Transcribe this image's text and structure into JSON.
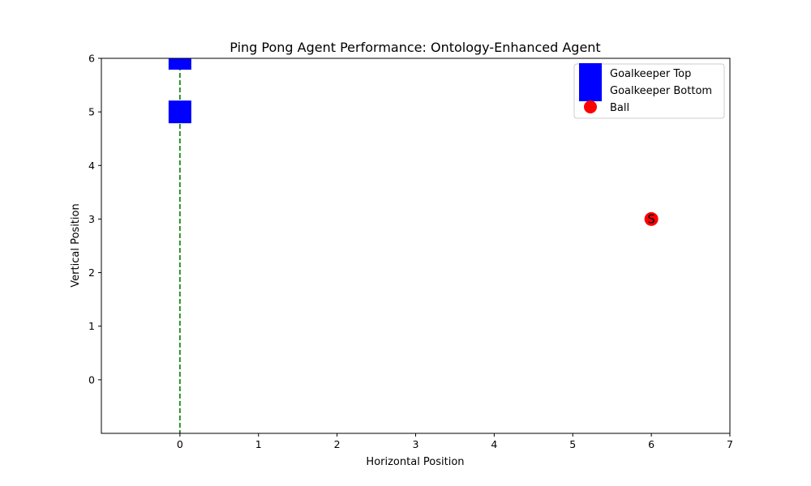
{
  "chart_data": {
    "type": "scatter",
    "title": "Ping Pong Agent Performance: Ontology-Enhanced Agent",
    "xlabel": "Horizontal Position",
    "ylabel": "Vertical Position",
    "xlim": [
      -1,
      7
    ],
    "ylim": [
      -1,
      6
    ],
    "xticks": [
      "0",
      "1",
      "2",
      "3",
      "4",
      "5",
      "6",
      "7"
    ],
    "yticks": [
      "0",
      "1",
      "2",
      "3",
      "4",
      "5",
      "6"
    ],
    "grid": false,
    "legend_position": "top-right",
    "goal_line": {
      "x": 0,
      "style": "dashed",
      "color": "#008000"
    },
    "series": [
      {
        "name": "Goalkeeper Top",
        "marker": "square",
        "color": "#0000ff",
        "points": [
          {
            "x": 0,
            "y": 6
          }
        ]
      },
      {
        "name": "Goalkeeper Bottom",
        "marker": "square",
        "color": "#0000ff",
        "points": [
          {
            "x": 0,
            "y": 5
          }
        ]
      },
      {
        "name": "Ball",
        "marker": "circle",
        "color": "#ff0000",
        "points": [
          {
            "x": 6,
            "y": 3
          }
        ]
      }
    ],
    "annotations": [
      {
        "text": "S",
        "x": 6,
        "y": 3
      }
    ]
  }
}
